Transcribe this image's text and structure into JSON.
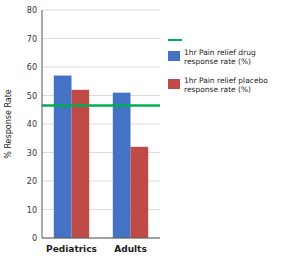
{
  "chart_data": {
    "type": "bar",
    "categories": [
      "Pediatrics",
      "Adults"
    ],
    "series": [
      {
        "name": "1hr Pain relief drug\nresponse rate (%)",
        "color": "#4472C4",
        "values": [
          57,
          51
        ]
      },
      {
        "name": "1hr Pain relief placebo\nresponse rate (%)",
        "color": "#BE4B48",
        "values": [
          52,
          32
        ]
      }
    ],
    "reference_line": {
      "value": 46.5,
      "color": "#00B050"
    },
    "y_label": "% Response Rate",
    "ylim": [
      0,
      80
    ],
    "yticks": [
      0,
      10,
      20,
      30,
      40,
      50,
      60,
      70,
      80
    ],
    "grid": true,
    "legend": "right"
  }
}
